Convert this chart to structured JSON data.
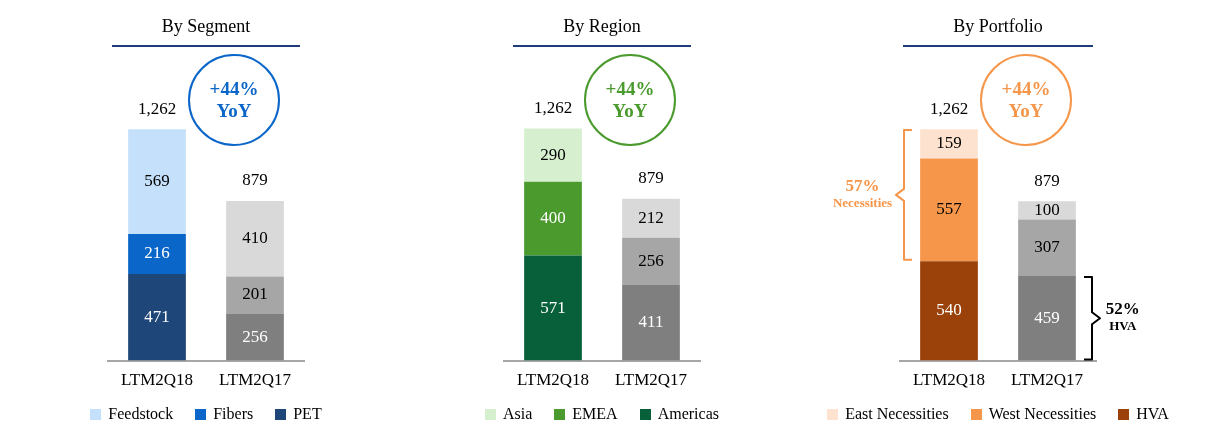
{
  "chart_data": [
    {
      "type": "bar",
      "title": "By Segment",
      "categories": [
        "LTM2Q18",
        "LTM2Q17"
      ],
      "stacked": true,
      "data_labels": true,
      "grid": false,
      "legend": "bottom",
      "tick_labels": "x",
      "annotations": [
        "+44%\nYoY",
        {
          "text": "1,262",
          "x": "LTM2Q18",
          "y": 1256
        },
        {
          "text": "879",
          "x": "LTM2Q17",
          "y": 867
        }
      ],
      "series": [
        {
          "name": "PET",
          "color": "#1f4678",
          "colors": [
            "#1f4678",
            "#7f7f7f"
          ],
          "values": [
            471,
            256
          ]
        },
        {
          "name": "Fibers",
          "color": "#0a66c8",
          "colors": [
            "#0a66c8",
            "#a6a6a6"
          ],
          "values": [
            216,
            201
          ]
        },
        {
          "name": "Feedstock",
          "color": "#c5e0fa",
          "colors": [
            "#c5e0fa",
            "#d9d9d9"
          ],
          "values": [
            569,
            410
          ]
        }
      ]
    },
    {
      "type": "bar",
      "title": "By Region",
      "categories": [
        "LTM2Q18",
        "LTM2Q17"
      ],
      "stacked": true,
      "data_labels": true,
      "grid": false,
      "legend": "bottom",
      "tick_labels": "x",
      "annotations": [
        "+44%\nYoY",
        {
          "text": "1,262",
          "x": "LTM2Q18",
          "y": 1261
        },
        {
          "text": "879",
          "x": "LTM2Q17",
          "y": 879
        }
      ],
      "series": [
        {
          "name": "Americas",
          "color": "#07603a",
          "colors": [
            "#07603a",
            "#7f7f7f"
          ],
          "values": [
            571,
            411
          ]
        },
        {
          "name": "EMEA",
          "color": "#4a9a2e",
          "colors": [
            "#4a9a2e",
            "#a6a6a6"
          ],
          "values": [
            400,
            256
          ]
        },
        {
          "name": "Asia",
          "color": "#d6f0cf",
          "colors": [
            "#d6f0cf",
            "#d9d9d9"
          ],
          "values": [
            290,
            212
          ]
        }
      ]
    },
    {
      "type": "bar",
      "title": "By Portfolio",
      "categories": [
        "LTM2Q18",
        "LTM2Q17"
      ],
      "stacked": true,
      "data_labels": true,
      "grid": false,
      "legend": "bottom",
      "tick_labels": "x",
      "annotations": [
        "+44%\nYoY",
        "57%\nNecessities",
        "52%\nHVA",
        {
          "text": "1,262",
          "x": "LTM2Q18",
          "y": 1256
        },
        {
          "text": "879",
          "x": "LTM2Q17",
          "y": 866
        }
      ],
      "series": [
        {
          "name": "HVA",
          "color": "#9a4209",
          "colors": [
            "#9a4209",
            "#7f7f7f"
          ],
          "values": [
            540,
            459
          ]
        },
        {
          "name": "West Necessities",
          "color": "#f5964a",
          "colors": [
            "#f5964a",
            "#a6a6a6"
          ],
          "values": [
            557,
            307
          ]
        },
        {
          "name": "East Necessities",
          "color": "#fde3cf",
          "colors": [
            "#fde3cf",
            "#d9d9d9"
          ],
          "values": [
            159,
            100
          ]
        }
      ]
    }
  ]
}
